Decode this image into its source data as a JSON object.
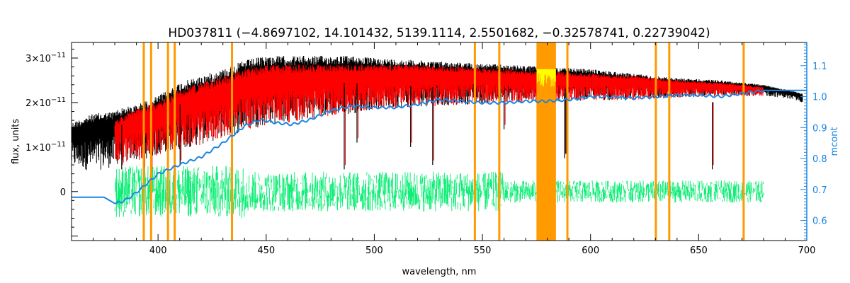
{
  "chart_data": {
    "type": "line",
    "title": "HD037811    (−4.8697102, 14.101432, 5139.1114, 2.5501682, −0.32578741, 0.22739042)",
    "xlabel": "wavelength, nm",
    "ylabel": "flux, units",
    "y2label": "mcont",
    "xlim": [
      360,
      700
    ],
    "ylim": [
      -1.1e-11,
      3.35e-11
    ],
    "y2lim": [
      0.535,
      1.175
    ],
    "x_ticks": [
      {
        "value": 400,
        "label": "400"
      },
      {
        "value": 450,
        "label": "450"
      },
      {
        "value": 500,
        "label": "500"
      },
      {
        "value": 550,
        "label": "550"
      },
      {
        "value": 600,
        "label": "600"
      },
      {
        "value": 650,
        "label": "650"
      },
      {
        "value": 700,
        "label": "700"
      }
    ],
    "y_ticks": [
      {
        "value": 0,
        "label": "0",
        "exp": ""
      },
      {
        "value": 1e-11,
        "label": "1×10",
        "exp": "−11"
      },
      {
        "value": 2e-11,
        "label": "2×10",
        "exp": "−11"
      },
      {
        "value": 3e-11,
        "label": "3×10",
        "exp": "−11"
      }
    ],
    "y2_ticks": [
      {
        "value": 0.6,
        "label": "0.6"
      },
      {
        "value": 0.7,
        "label": "0.7"
      },
      {
        "value": 0.8,
        "label": "0.8"
      },
      {
        "value": 0.9,
        "label": "0.9"
      },
      {
        "value": 1.0,
        "label": "1.0"
      },
      {
        "value": 1.1,
        "label": "1.1"
      }
    ],
    "masked_lines_nm": [
      393.4,
      396.8,
      404.6,
      407.7,
      434.2,
      546.5,
      557.8,
      589.3,
      630.2,
      636.4,
      670.8
    ],
    "masked_band_nm": [
      575,
      584
    ],
    "observed_envelope": {
      "name": "observed",
      "x": [
        360,
        370,
        379,
        381,
        385,
        390,
        395,
        400,
        405,
        410,
        420,
        430,
        440,
        450,
        460,
        470,
        480,
        490,
        500,
        520,
        540,
        560,
        580,
        600,
        620,
        640,
        660,
        680,
        690,
        698
      ],
      "top": [
        1.55e-11,
        1.75e-11,
        1.8e-11,
        1.85e-11,
        1.9e-11,
        1.95e-11,
        2.05e-11,
        2.15e-11,
        2.3e-11,
        2.45e-11,
        2.6e-11,
        2.75e-11,
        2.95e-11,
        3.05e-11,
        3.05e-11,
        3.05e-11,
        3.05e-11,
        3.05e-11,
        3e-11,
        2.95e-11,
        2.9e-11,
        2.85e-11,
        2.8e-11,
        2.75e-11,
        2.65e-11,
        2.55e-11,
        2.5e-11,
        2.4e-11,
        2.3e-11,
        2.2e-11
      ],
      "bottom": [
        5.5e-12,
        4.5e-12,
        5.5e-12,
        6e-12,
        6.5e-12,
        7e-12,
        7.5e-12,
        8e-12,
        9e-12,
        9.5e-12,
        1.05e-11,
        1.2e-11,
        1.35e-11,
        1.5e-11,
        1.55e-11,
        1.6e-11,
        1.7e-11,
        1.75e-11,
        1.85e-11,
        1.9e-11,
        1.95e-11,
        2e-11,
        2e-11,
        2.05e-11,
        2.05e-11,
        2.1e-11,
        2.15e-11,
        2.15e-11,
        2.1e-11,
        2e-11
      ]
    },
    "model_envelope": {
      "name": "model",
      "x": [
        380,
        385,
        390,
        395,
        400,
        405,
        410,
        420,
        430,
        440,
        450,
        460,
        470,
        480,
        490,
        500,
        520,
        540,
        560,
        580,
        600,
        620,
        640,
        660,
        680
      ],
      "top": [
        1.6e-11,
        1.75e-11,
        1.85e-11,
        1.95e-11,
        2e-11,
        2.15e-11,
        2.3e-11,
        2.45e-11,
        2.6e-11,
        2.75e-11,
        2.85e-11,
        2.85e-11,
        2.85e-11,
        2.85e-11,
        2.85e-11,
        2.85e-11,
        2.85e-11,
        2.8e-11,
        2.75e-11,
        2.7e-11,
        2.65e-11,
        2.6e-11,
        2.5e-11,
        2.45e-11,
        2.35e-11
      ],
      "bottom": [
        6e-12,
        6.5e-12,
        7e-12,
        7.5e-12,
        8e-12,
        9e-12,
        9.5e-12,
        1.05e-11,
        1.2e-11,
        1.35e-11,
        1.5e-11,
        1.55e-11,
        1.6e-11,
        1.7e-11,
        1.75e-11,
        1.85e-11,
        1.9e-11,
        1.95e-11,
        2e-11,
        2e-11,
        2.05e-11,
        2.05e-11,
        2.1e-11,
        2.15e-11,
        2.15e-11
      ]
    },
    "deep_absorption_lines": [
      {
        "x": 383.2,
        "y": 5e-12
      },
      {
        "x": 393.4,
        "y": 3e-12
      },
      {
        "x": 396.8,
        "y": 4e-12
      },
      {
        "x": 410.2,
        "y": 6e-12
      },
      {
        "x": 434.0,
        "y": 8e-12
      },
      {
        "x": 486.1,
        "y": 5e-12
      },
      {
        "x": 492.0,
        "y": 1.1e-11
      },
      {
        "x": 516.8,
        "y": 1e-11
      },
      {
        "x": 527.0,
        "y": 6e-12
      },
      {
        "x": 560.0,
        "y": 1.4e-11
      },
      {
        "x": 588.0,
        "y": 7.5e-12
      },
      {
        "x": 588.6,
        "y": 8.5e-12
      },
      {
        "x": 656.3,
        "y": 5e-12
      }
    ],
    "residuals": {
      "name": "residuals",
      "x": [
        380,
        680
      ],
      "center": 0,
      "spread": 4.5e-12
    },
    "mcont": {
      "name": "mcont",
      "x": [
        360,
        375,
        380,
        383,
        386,
        390,
        395,
        400,
        410,
        420,
        430,
        440,
        447,
        455,
        462,
        470,
        480,
        490,
        500,
        510,
        520,
        530,
        540,
        550,
        560,
        570,
        580,
        590,
        600,
        610,
        620,
        630,
        640,
        650,
        660,
        670,
        680,
        700
      ],
      "y": [
        0.675,
        0.675,
        0.655,
        0.66,
        0.67,
        0.69,
        0.72,
        0.75,
        0.78,
        0.805,
        0.85,
        0.905,
        0.925,
        0.915,
        0.91,
        0.925,
        0.955,
        0.97,
        0.965,
        0.965,
        0.975,
        0.99,
        0.985,
        0.98,
        0.98,
        0.985,
        0.985,
        0.99,
        1.0,
        1.0,
        0.995,
        1.0,
        1.005,
        1.005,
        1.0,
        1.01,
        1.02,
        1.02
      ]
    },
    "colors": {
      "observed": "#000000",
      "model": "#ff0000",
      "residuals": "#11ee77",
      "mcont": "#1a86e0",
      "mask": "#ff9a00",
      "band_inner": "#ffff00",
      "axis": "#000000",
      "right_axis": "#1a86e0"
    }
  }
}
